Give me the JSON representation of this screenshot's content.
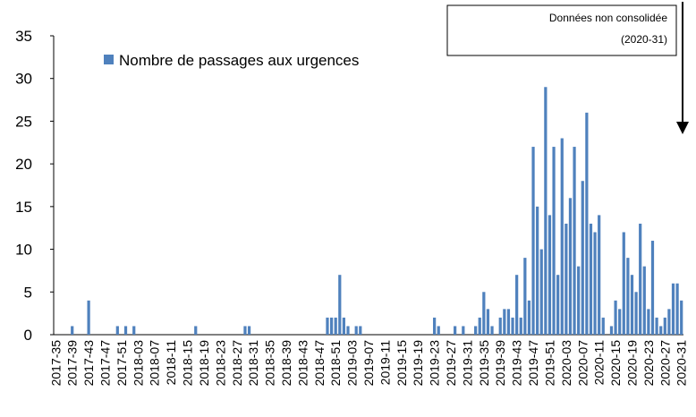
{
  "chart_data": {
    "type": "bar",
    "categories": [
      "2017-35",
      null,
      null,
      null,
      "2017-39",
      null,
      null,
      null,
      "2017-43",
      null,
      null,
      null,
      "2017-47",
      null,
      null,
      null,
      "2017-51",
      null,
      null,
      null,
      "2018-03",
      null,
      null,
      null,
      "2018-07",
      null,
      null,
      null,
      "2018-11",
      null,
      null,
      null,
      "2018-15",
      null,
      null,
      null,
      "2018-19",
      null,
      null,
      null,
      "2018-23",
      null,
      null,
      null,
      "2018-27",
      null,
      null,
      null,
      "2018-31",
      null,
      null,
      null,
      "2018-35",
      null,
      null,
      null,
      "2018-39",
      null,
      null,
      null,
      "2018-43",
      null,
      null,
      null,
      "2018-47",
      null,
      null,
      null,
      "2018-51",
      null,
      null,
      null,
      "2019-03",
      null,
      null,
      null,
      "2019-07",
      null,
      null,
      null,
      "2019-11",
      null,
      null,
      null,
      "2019-15",
      null,
      null,
      null,
      "2019-19",
      null,
      null,
      null,
      "2019-23",
      null,
      null,
      null,
      "2019-27",
      null,
      null,
      null,
      "2019-31",
      null,
      null,
      null,
      "2019-35",
      null,
      null,
      null,
      "2019-39",
      null,
      null,
      null,
      "2019-43",
      null,
      null,
      null,
      "2019-47",
      null,
      null,
      null,
      "2019-51",
      null,
      null,
      null,
      "2020-03",
      null,
      null,
      null,
      "2020-07",
      null,
      null,
      null,
      "2020-11",
      null,
      null,
      null,
      "2020-15",
      null,
      null,
      null,
      "2020-19",
      null,
      null,
      null,
      "2020-23",
      null,
      null,
      null,
      "2020-27",
      null,
      null,
      null,
      "2020-31"
    ],
    "series": [
      {
        "name": "Nombre de passages aux urgences",
        "color": "#4f81bd",
        "values": [
          0,
          0,
          0,
          0,
          1,
          0,
          0,
          0,
          4,
          0,
          0,
          0,
          0,
          0,
          0,
          1,
          0,
          1,
          0,
          1,
          0,
          0,
          0,
          0,
          0,
          0,
          0,
          0,
          0,
          0,
          0,
          0,
          0,
          0,
          1,
          0,
          0,
          0,
          0,
          0,
          0,
          0,
          0,
          0,
          0,
          0,
          1,
          1,
          0,
          0,
          0,
          0,
          0,
          0,
          0,
          0,
          0,
          0,
          0,
          0,
          0,
          0,
          0,
          0,
          0,
          0,
          2,
          2,
          2,
          7,
          2,
          1,
          0,
          1,
          1,
          0,
          0,
          0,
          0,
          0,
          0,
          0,
          0,
          0,
          0,
          0,
          0,
          0,
          0,
          0,
          0,
          0,
          2,
          1,
          0,
          0,
          0,
          1,
          0,
          1,
          0,
          0,
          1,
          2,
          5,
          3,
          1,
          0,
          2,
          3,
          3,
          2,
          7,
          2,
          9,
          4,
          22,
          15,
          10,
          29,
          14,
          22,
          7,
          23,
          13,
          16,
          22,
          8,
          18,
          26,
          13,
          12,
          14,
          2,
          0,
          1,
          4,
          3,
          12,
          9,
          7,
          5,
          13,
          8,
          3,
          11,
          2,
          1,
          2,
          3,
          6,
          6,
          4
        ]
      }
    ],
    "ylim": [
      0,
      35
    ],
    "yticks": [
      0,
      5,
      10,
      15,
      20,
      25,
      30,
      35
    ],
    "grid": false,
    "annotation": [
      "Données non consolidée",
      "(2020-31)"
    ]
  }
}
